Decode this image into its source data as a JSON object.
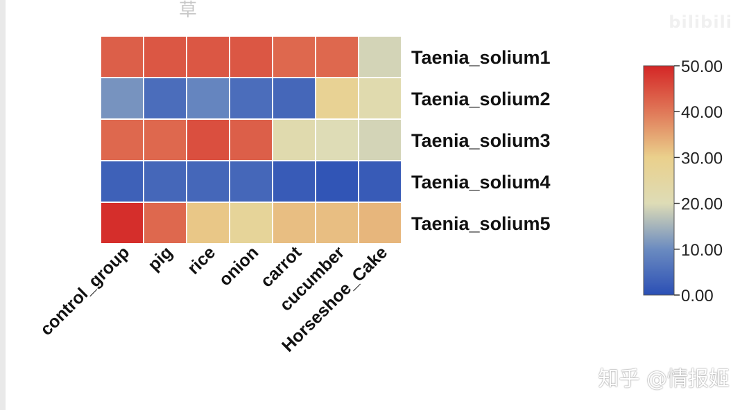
{
  "chart_data": {
    "type": "heatmap",
    "columns": [
      "control_group",
      "pig",
      "rice",
      "onion",
      "carrot",
      "cucumber",
      "Horseshoe_Cake"
    ],
    "rows": [
      "Taenia_solium1",
      "Taenia_solium2",
      "Taenia_solium3",
      "Taenia_solium4",
      "Taenia_solium5"
    ],
    "values": [
      [
        43,
        44,
        44,
        44,
        42,
        42,
        19
      ],
      [
        11,
        5,
        9,
        5,
        4,
        28,
        22
      ],
      [
        42,
        42,
        45,
        43,
        22,
        20,
        19
      ],
      [
        3,
        4,
        4,
        4,
        2,
        1,
        2
      ],
      [
        49,
        42,
        31,
        27,
        32,
        32,
        33
      ]
    ],
    "colorbar": {
      "min": 0,
      "max": 50,
      "ticks": [
        "0.00",
        "10.00",
        "20.00",
        "30.00",
        "40.00",
        "50.00"
      ],
      "colors": [
        "#2b4fb5",
        "#6b8bc0",
        "#dedcb6",
        "#ead08c",
        "#e07858",
        "#d42626"
      ]
    }
  },
  "overlay": {
    "top_glyph": "草",
    "watermark_top": "bilibili",
    "watermark_bottom": "知乎 @情报姬"
  }
}
